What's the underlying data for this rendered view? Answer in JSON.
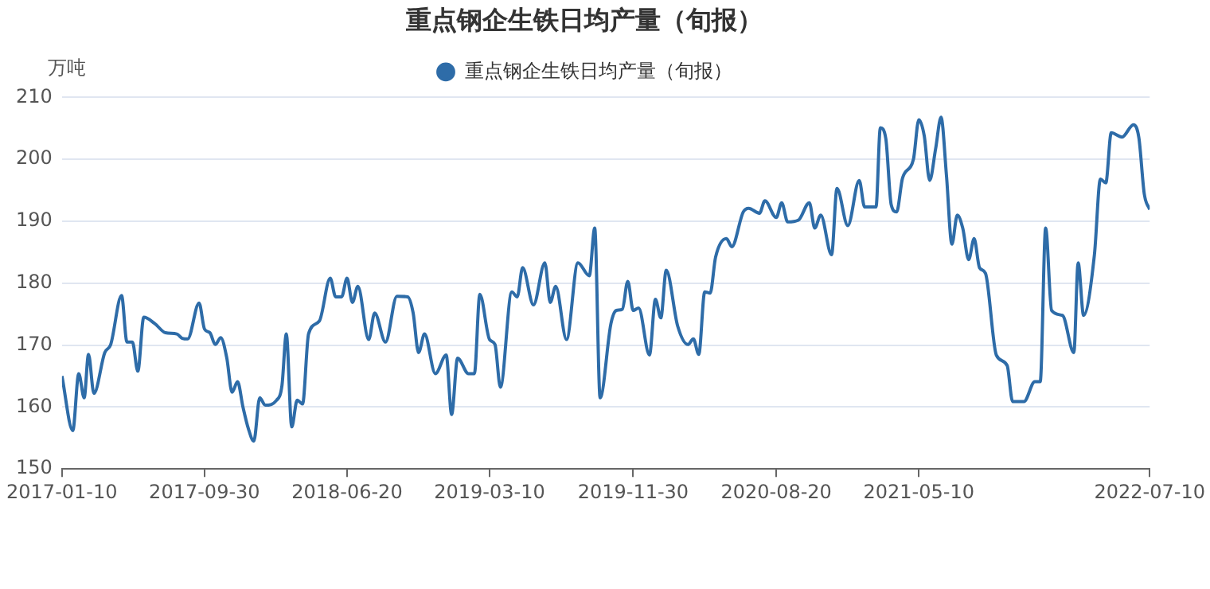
{
  "chart_data": {
    "type": "line",
    "title": "重点钢企生铁日均产量（旬报）",
    "ylabel": "万吨",
    "x": [
      "2017-01-10",
      "2017-01-30",
      "2017-02-10",
      "2017-02-20",
      "2017-02-28",
      "2017-03-10",
      "2017-03-30",
      "2017-04-10",
      "2017-04-30",
      "2017-05-10",
      "2017-05-20",
      "2017-05-30",
      "2017-06-10",
      "2017-06-30",
      "2017-07-20",
      "2017-08-10",
      "2017-08-20",
      "2017-08-30",
      "2017-09-20",
      "2017-09-30",
      "2017-10-10",
      "2017-10-20",
      "2017-10-30",
      "2017-11-10",
      "2017-11-20",
      "2017-11-30",
      "2017-12-10",
      "2017-12-20",
      "2017-12-30",
      "2018-01-10",
      "2018-01-20",
      "2018-02-10",
      "2018-02-20",
      "2018-02-28",
      "2018-03-10",
      "2018-03-20",
      "2018-03-30",
      "2018-04-10",
      "2018-04-30",
      "2018-05-20",
      "2018-05-30",
      "2018-06-10",
      "2018-06-20",
      "2018-06-30",
      "2018-07-10",
      "2018-07-30",
      "2018-08-10",
      "2018-08-30",
      "2018-09-20",
      "2018-10-10",
      "2018-10-20",
      "2018-10-30",
      "2018-11-10",
      "2018-11-30",
      "2018-12-20",
      "2018-12-30",
      "2019-01-10",
      "2019-01-30",
      "2019-02-10",
      "2019-02-20",
      "2019-03-10",
      "2019-03-20",
      "2019-03-30",
      "2019-04-20",
      "2019-04-30",
      "2019-05-10",
      "2019-05-30",
      "2019-06-20",
      "2019-06-30",
      "2019-07-10",
      "2019-07-30",
      "2019-08-20",
      "2019-09-10",
      "2019-09-20",
      "2019-09-30",
      "2019-10-20",
      "2019-10-30",
      "2019-11-10",
      "2019-11-20",
      "2019-11-30",
      "2019-12-10",
      "2019-12-30",
      "2020-01-10",
      "2020-01-20",
      "2020-01-30",
      "2020-02-20",
      "2020-03-10",
      "2020-03-20",
      "2020-03-30",
      "2020-04-10",
      "2020-04-20",
      "2020-04-30",
      "2020-05-20",
      "2020-05-30",
      "2020-06-20",
      "2020-06-30",
      "2020-07-20",
      "2020-07-30",
      "2020-08-20",
      "2020-08-30",
      "2020-09-10",
      "2020-09-30",
      "2020-10-20",
      "2020-10-30",
      "2020-11-10",
      "2020-11-30",
      "2020-12-10",
      "2020-12-30",
      "2021-01-20",
      "2021-01-30",
      "2021-02-20",
      "2021-02-28",
      "2021-03-10",
      "2021-03-20",
      "2021-03-30",
      "2021-04-10",
      "2021-04-30",
      "2021-05-10",
      "2021-05-20",
      "2021-05-30",
      "2021-06-10",
      "2021-06-20",
      "2021-06-30",
      "2021-07-10",
      "2021-07-20",
      "2021-07-30",
      "2021-08-10",
      "2021-08-20",
      "2021-08-30",
      "2021-09-10",
      "2021-09-30",
      "2021-10-20",
      "2021-10-30",
      "2021-11-20",
      "2021-12-10",
      "2021-12-20",
      "2021-12-30",
      "2022-01-10",
      "2022-01-30",
      "2022-02-20",
      "2022-02-28",
      "2022-03-10",
      "2022-03-30",
      "2022-04-10",
      "2022-04-20",
      "2022-04-30",
      "2022-05-20",
      "2022-06-10",
      "2022-06-20",
      "2022-06-30",
      "2022-07-10"
    ],
    "series": [
      {
        "name": "重点钢企生铁日均产量（旬报）",
        "color": "#2e6ca8",
        "values": [
          165,
          156.2,
          165.4,
          161.5,
          168.5,
          162.2,
          168.8,
          170.1,
          178,
          170.5,
          170.5,
          165.8,
          174.5,
          173.5,
          172,
          171.8,
          171.1,
          171,
          176.8,
          172.6,
          172,
          170.1,
          171.2,
          168,
          162.4,
          164.1,
          160,
          156.5,
          154.5,
          161.5,
          160.3,
          161.1,
          163.5,
          171.8,
          156.8,
          161.1,
          160.5,
          171.8,
          173.9,
          180.8,
          177.8,
          177.8,
          180.8,
          176.9,
          179.5,
          170.9,
          175.2,
          170.5,
          177.9,
          177.8,
          175.2,
          168.8,
          171.8,
          165.4,
          168.4,
          158.8,
          167.9,
          165.4,
          165.4,
          178.2,
          170.9,
          170.1,
          163.2,
          178.6,
          177.8,
          182.5,
          176.5,
          183.3,
          176.9,
          179.5,
          170.9,
          183.3,
          181.2,
          188.9,
          161.5,
          173.5,
          175.6,
          175.8,
          180.3,
          175.6,
          176,
          168.4,
          177.4,
          174.4,
          182.1,
          173.1,
          170.1,
          171,
          168.5,
          178.6,
          178.4,
          184.2,
          187.2,
          185.9,
          191.5,
          192.1,
          191.3,
          193.3,
          190.6,
          193,
          189.9,
          190.2,
          193,
          188.9,
          191,
          184.6,
          195.3,
          189.3,
          196.6,
          192.3,
          192.3,
          205.1,
          203.4,
          192.7,
          191.5,
          197,
          200,
          206.4,
          203.8,
          196.6,
          201.7,
          206.8,
          197.4,
          186.3,
          191,
          188.9,
          183.8,
          187.2,
          182.5,
          181.6,
          168.4,
          166.7,
          160.9,
          160.9,
          164.1,
          164.1,
          188.9,
          175.6,
          174.8,
          168.8,
          183.3,
          174.8,
          184.6,
          196.8,
          196.2,
          204.3,
          203.6,
          205.6,
          203.5,
          194.4,
          191.9
        ]
      }
    ],
    "xlim": [
      "2017-01-10",
      "2022-07-10"
    ],
    "xticks": [
      "2017-01-10",
      "2017-09-30",
      "2018-06-20",
      "2019-03-10",
      "2019-11-30",
      "2020-08-20",
      "2021-05-10",
      "2022-07-10"
    ],
    "ylim": [
      150,
      210
    ],
    "yticks": [
      150,
      160,
      170,
      180,
      190,
      200,
      210
    ],
    "grid": "y",
    "legend": "top",
    "marker": "none",
    "line_style": "solid"
  }
}
